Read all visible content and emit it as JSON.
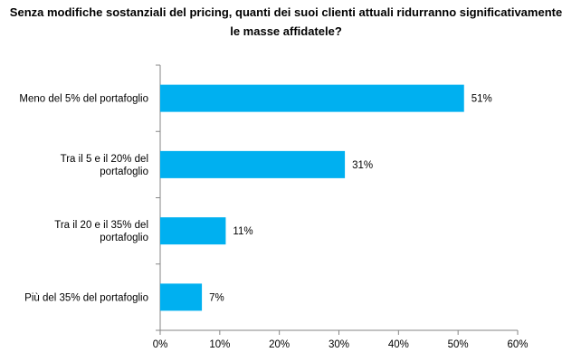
{
  "chart_data": {
    "type": "bar",
    "orientation": "horizontal",
    "title_lines": [
      "Senza modifiche sostanziali del pricing, quanti dei suoi clienti attuali ridurranno significativamente",
      "le masse affidatele?"
    ],
    "categories": [
      [
        "Meno del 5% del portafoglio"
      ],
      [
        "Tra il 5 e il 20% del",
        "portafoglio"
      ],
      [
        "Tra il 20 e il 35% del",
        "portafoglio"
      ],
      [
        "Più del 35% del portafoglio"
      ]
    ],
    "values": [
      51,
      31,
      11,
      7
    ],
    "value_labels": [
      "51%",
      "31%",
      "11%",
      "7%"
    ],
    "xlim": [
      0,
      60
    ],
    "ticks": [
      "0%",
      "10%",
      "20%",
      "30%",
      "40%",
      "50%",
      "60%"
    ],
    "bar_color": "#00b0f0",
    "grid": false
  }
}
